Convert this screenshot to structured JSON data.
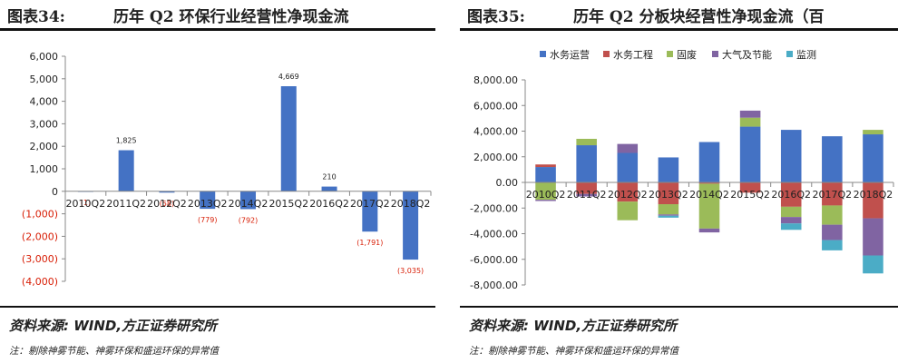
{
  "panels": [
    {
      "figure_label": "图表34:",
      "title": "历年 Q2 环保行业经营性净现金流",
      "source": "资料来源: WIND,方正证券研究所",
      "note": "注：剔除神雾节能、神雾环保和盛运环保的异常值"
    },
    {
      "figure_label": "图表35:",
      "title": "历年 Q2 分板块经营性净现金流（百",
      "source": "资料来源: WIND,方正证券研究所",
      "note": "注：剔除神雾节能、神雾环保和盛运环保的异常值"
    }
  ],
  "chart_data": [
    {
      "type": "bar",
      "categories": [
        "2010Q2",
        "2011Q2",
        "2012Q2",
        "2013Q2",
        "2014Q2",
        "2015Q2",
        "2016Q2",
        "2017Q2",
        "2018Q2"
      ],
      "values": [
        -1,
        1825,
        -58,
        -779,
        -792,
        4669,
        210,
        -1791,
        -3035
      ],
      "data_labels": [
        "(1)",
        "1,825",
        "(58)",
        "(779)",
        "(792)",
        "4,669",
        "210",
        "(1,791)",
        "(3,035)"
      ],
      "ylim": [
        -4000,
        6000
      ],
      "yticks": [
        6000,
        5000,
        4000,
        3000,
        2000,
        1000,
        0,
        -1000,
        -2000,
        -3000,
        -4000
      ],
      "ytick_labels": [
        "6,000",
        "5,000",
        "4,000",
        "3,000",
        "2,000",
        "1,000",
        "0",
        "(1,000)",
        "(2,000)",
        "(3,000)",
        "(4,000)"
      ],
      "bar_color": "#4472c4",
      "negative_color": "#d81e06",
      "grid": false
    },
    {
      "type": "bar",
      "stacked": true,
      "categories": [
        "2010Q2",
        "2011Q2",
        "2012Q2",
        "2013Q2",
        "2014Q2",
        "2015Q2",
        "2016Q2",
        "2017Q2",
        "2018Q2"
      ],
      "series": [
        {
          "name": "水务运营",
          "color": "#4472c4",
          "values": [
            1200,
            2900,
            2300,
            1950,
            3150,
            4350,
            4100,
            3600,
            3750
          ]
        },
        {
          "name": "水务工程",
          "color": "#c0504d",
          "values": [
            200,
            -900,
            -1500,
            -1700,
            -100,
            -800,
            -1900,
            -1800,
            -2800
          ]
        },
        {
          "name": "固废",
          "color": "#9bbb59",
          "values": [
            -1350,
            500,
            -1450,
            -800,
            -3500,
            700,
            -800,
            -1500,
            350
          ]
        },
        {
          "name": "大气及节能",
          "color": "#8064a2",
          "values": [
            -100,
            -200,
            700,
            -100,
            -300,
            550,
            -500,
            -1200,
            -2900
          ]
        },
        {
          "name": "监测",
          "color": "#4bacc6",
          "values": [
            0,
            0,
            0,
            -150,
            0,
            0,
            -500,
            -800,
            -1400
          ]
        }
      ],
      "ylim": [
        -8000,
        8000
      ],
      "yticks": [
        8000,
        6000,
        4000,
        2000,
        0,
        -2000,
        -4000,
        -6000,
        -8000
      ],
      "ytick_labels": [
        "8,000.00",
        "6,000.00",
        "4,000.00",
        "2,000.00",
        "0.00",
        "-2,000.00",
        "-4,000.00",
        "-6,000.00",
        "-8,000.00"
      ],
      "legend_position": "top",
      "grid": false
    }
  ]
}
